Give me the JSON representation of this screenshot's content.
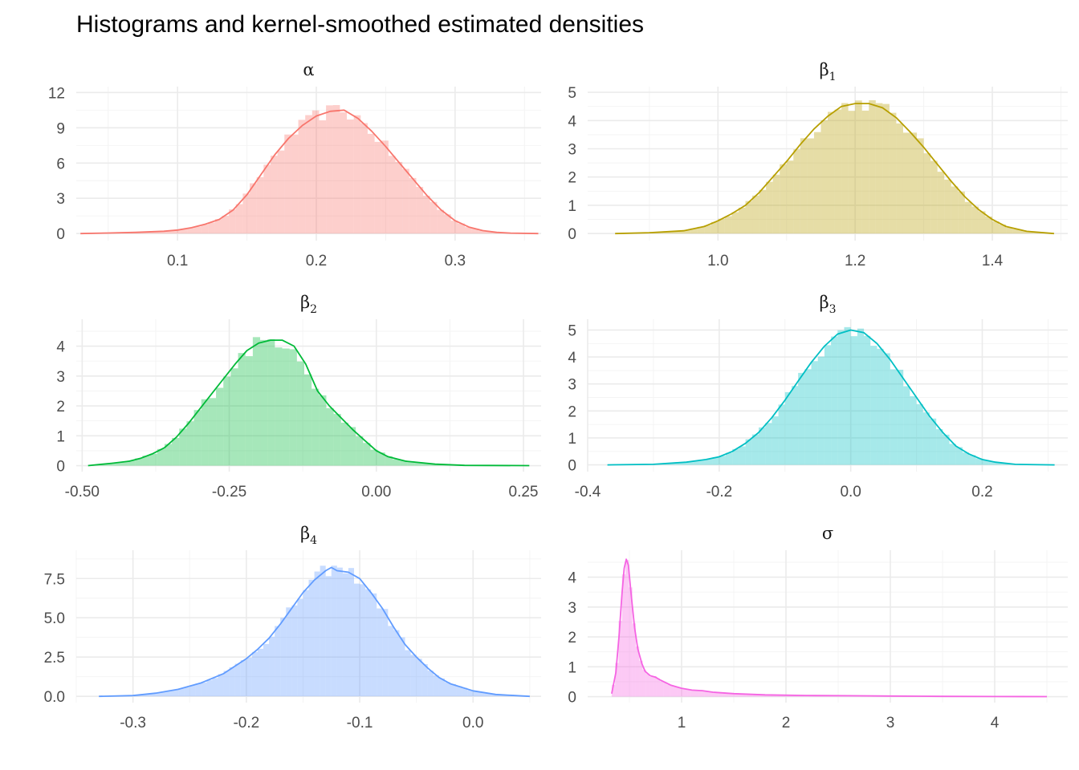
{
  "title": "Histograms and kernel-smoothed estimated densities",
  "chart_data": [
    {
      "type": "histogram+density",
      "panel_label": "α",
      "label_base": "α",
      "label_sub": "",
      "color": "#F8766D",
      "xlim": [
        0.027,
        0.362
      ],
      "ylim": [
        -0.6,
        12.5
      ],
      "xticks": [
        0.1,
        0.2,
        0.3
      ],
      "xtick_labels": [
        "0.1",
        "0.2",
        "0.3"
      ],
      "yticks": [
        0,
        3,
        6,
        9,
        12
      ],
      "ytick_labels": [
        "0",
        "3",
        "6",
        "9",
        "12"
      ],
      "density": {
        "x": [
          0.03,
          0.05,
          0.07,
          0.09,
          0.1,
          0.11,
          0.12,
          0.13,
          0.14,
          0.15,
          0.16,
          0.17,
          0.18,
          0.19,
          0.2,
          0.21,
          0.22,
          0.23,
          0.24,
          0.25,
          0.26,
          0.27,
          0.28,
          0.29,
          0.3,
          0.31,
          0.32,
          0.33,
          0.34,
          0.36
        ],
        "y": [
          0.0,
          0.05,
          0.1,
          0.2,
          0.3,
          0.5,
          0.8,
          1.2,
          2.0,
          3.3,
          5.0,
          6.7,
          8.1,
          9.2,
          10.0,
          10.4,
          10.5,
          9.8,
          8.7,
          7.4,
          6.0,
          4.6,
          3.2,
          2.0,
          1.1,
          0.55,
          0.25,
          0.1,
          0.04,
          0.0
        ]
      },
      "bins": {
        "start": 0.027,
        "width": 0.005,
        "noise": 0.06
      }
    },
    {
      "type": "histogram+density",
      "panel_label": "β1",
      "label_base": "β",
      "label_sub": "1",
      "color": "#B79F00",
      "xlim": [
        0.81,
        1.51
      ],
      "ylim": [
        -0.25,
        5.2
      ],
      "xticks": [
        1.0,
        1.2,
        1.4
      ],
      "xtick_labels": [
        "1.0",
        "1.2",
        "1.4"
      ],
      "yticks": [
        0,
        1,
        2,
        3,
        4,
        5
      ],
      "ytick_labels": [
        "0",
        "1",
        "2",
        "3",
        "4",
        "5"
      ],
      "density": {
        "x": [
          0.85,
          0.9,
          0.95,
          0.98,
          1.0,
          1.02,
          1.04,
          1.06,
          1.08,
          1.1,
          1.12,
          1.14,
          1.16,
          1.18,
          1.2,
          1.22,
          1.24,
          1.26,
          1.28,
          1.3,
          1.32,
          1.34,
          1.36,
          1.38,
          1.4,
          1.42,
          1.45,
          1.49
        ],
        "y": [
          0.0,
          0.03,
          0.1,
          0.25,
          0.45,
          0.7,
          1.0,
          1.45,
          2.0,
          2.55,
          3.15,
          3.7,
          4.15,
          4.5,
          4.6,
          4.6,
          4.45,
          4.1,
          3.6,
          3.05,
          2.45,
          1.85,
          1.3,
          0.85,
          0.5,
          0.25,
          0.08,
          0.0
        ]
      },
      "bins": {
        "start": 0.81,
        "width": 0.01,
        "noise": 0.06
      }
    },
    {
      "type": "histogram+density",
      "panel_label": "β2",
      "label_base": "β",
      "label_sub": "2",
      "color": "#00BA38",
      "xlim": [
        -0.51,
        0.28
      ],
      "ylim": [
        -0.2,
        4.9
      ],
      "xticks": [
        -0.5,
        -0.25,
        0.0,
        0.25
      ],
      "xtick_labels": [
        "-0.50",
        "-0.25",
        "0.00",
        "0.25"
      ],
      "yticks": [
        0,
        1,
        2,
        3,
        4
      ],
      "ytick_labels": [
        "0",
        "1",
        "2",
        "3",
        "4"
      ],
      "density": {
        "x": [
          -0.49,
          -0.45,
          -0.42,
          -0.4,
          -0.38,
          -0.36,
          -0.34,
          -0.32,
          -0.3,
          -0.28,
          -0.26,
          -0.24,
          -0.22,
          -0.2,
          -0.18,
          -0.16,
          -0.14,
          -0.12,
          -0.1,
          -0.08,
          -0.06,
          -0.04,
          -0.02,
          0.0,
          0.02,
          0.05,
          0.1,
          0.15,
          0.26
        ],
        "y": [
          0.0,
          0.08,
          0.15,
          0.25,
          0.4,
          0.6,
          0.95,
          1.4,
          1.9,
          2.4,
          2.9,
          3.4,
          3.85,
          4.1,
          4.2,
          4.2,
          4.0,
          3.4,
          2.5,
          2.0,
          1.6,
          1.2,
          0.85,
          0.5,
          0.3,
          0.15,
          0.05,
          0.01,
          0.0
        ]
      },
      "bins": {
        "start": -0.51,
        "width": 0.0125,
        "noise": 0.07
      }
    },
    {
      "type": "histogram+density",
      "panel_label": "β3",
      "label_base": "β",
      "label_sub": "3",
      "color": "#00BFC4",
      "xlim": [
        -0.4,
        0.33
      ],
      "ylim": [
        -0.25,
        5.4
      ],
      "xticks": [
        -0.4,
        -0.2,
        0.0,
        0.2
      ],
      "xtick_labels": [
        "-0.4",
        "-0.2",
        "0.0",
        "0.2"
      ],
      "yticks": [
        0,
        1,
        2,
        3,
        4,
        5
      ],
      "ytick_labels": [
        "0",
        "1",
        "2",
        "3",
        "4",
        "5"
      ],
      "density": {
        "x": [
          -0.37,
          -0.3,
          -0.25,
          -0.22,
          -0.2,
          -0.18,
          -0.16,
          -0.14,
          -0.12,
          -0.1,
          -0.08,
          -0.06,
          -0.04,
          -0.02,
          0.0,
          0.02,
          0.04,
          0.06,
          0.08,
          0.1,
          0.12,
          0.14,
          0.16,
          0.18,
          0.2,
          0.22,
          0.25,
          0.31
        ],
        "y": [
          0.0,
          0.02,
          0.1,
          0.2,
          0.3,
          0.5,
          0.8,
          1.2,
          1.75,
          2.4,
          3.1,
          3.8,
          4.4,
          4.85,
          5.0,
          4.9,
          4.5,
          3.9,
          3.2,
          2.5,
          1.8,
          1.2,
          0.7,
          0.4,
          0.2,
          0.1,
          0.02,
          0.0
        ]
      },
      "bins": {
        "start": -0.4,
        "width": 0.01,
        "noise": 0.06
      }
    },
    {
      "type": "histogram+density",
      "panel_label": "β4",
      "label_base": "β",
      "label_sub": "4",
      "color": "#619CFF",
      "xlim": [
        -0.35,
        0.06
      ],
      "ylim": [
        -0.4,
        9.3
      ],
      "xticks": [
        -0.3,
        -0.2,
        -0.1,
        0.0
      ],
      "xtick_labels": [
        "-0.3",
        "-0.2",
        "-0.1",
        "0.0"
      ],
      "yticks": [
        0,
        2.5,
        5,
        7.5
      ],
      "ytick_labels": [
        "0.0",
        "2.5",
        "5.0",
        "7.5"
      ],
      "density": {
        "x": [
          -0.33,
          -0.3,
          -0.28,
          -0.26,
          -0.24,
          -0.22,
          -0.2,
          -0.19,
          -0.18,
          -0.17,
          -0.16,
          -0.15,
          -0.14,
          -0.13,
          -0.125,
          -0.12,
          -0.11,
          -0.1,
          -0.09,
          -0.08,
          -0.07,
          -0.06,
          -0.05,
          -0.04,
          -0.03,
          -0.02,
          0.0,
          0.02,
          0.05
        ],
        "y": [
          0.0,
          0.05,
          0.2,
          0.45,
          0.85,
          1.45,
          2.4,
          3.0,
          3.7,
          4.6,
          5.6,
          6.6,
          7.4,
          8.0,
          8.2,
          8.0,
          7.9,
          7.5,
          6.6,
          5.6,
          4.4,
          3.3,
          2.5,
          1.8,
          1.2,
          0.8,
          0.35,
          0.12,
          0.0
        ]
      },
      "bins": {
        "start": -0.35,
        "width": 0.005,
        "noise": 0.06
      }
    },
    {
      "type": "histogram+density",
      "panel_label": "σ",
      "label_base": "σ",
      "label_sub": "",
      "color": "#F564E3",
      "xlim": [
        0.1,
        4.7
      ],
      "ylim": [
        -0.2,
        4.9
      ],
      "xticks": [
        1,
        2,
        3,
        4
      ],
      "xtick_labels": [
        "1",
        "2",
        "3",
        "4"
      ],
      "yticks": [
        0,
        1,
        2,
        3,
        4
      ],
      "ytick_labels": [
        "0",
        "1",
        "2",
        "3",
        "4"
      ],
      "density": {
        "x": [
          0.33,
          0.37,
          0.4,
          0.43,
          0.45,
          0.47,
          0.49,
          0.52,
          0.55,
          0.58,
          0.62,
          0.65,
          0.7,
          0.75,
          0.8,
          0.9,
          1.0,
          1.1,
          1.2,
          1.3,
          1.5,
          1.8,
          2.2,
          2.6,
          3.0,
          3.5,
          4.0,
          4.5
        ],
        "y": [
          0.1,
          0.8,
          2.0,
          3.5,
          4.3,
          4.6,
          4.4,
          3.3,
          2.3,
          1.6,
          1.1,
          0.85,
          0.7,
          0.65,
          0.55,
          0.38,
          0.28,
          0.22,
          0.2,
          0.15,
          0.1,
          0.06,
          0.04,
          0.03,
          0.02,
          0.01,
          0.005,
          0.0
        ]
      },
      "bins": {
        "start": 0.33,
        "width": 0.033,
        "noise": 0.05
      }
    }
  ]
}
